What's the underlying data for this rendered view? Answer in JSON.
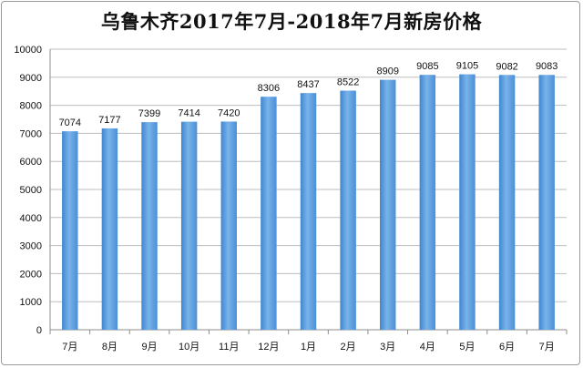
{
  "chart_data": {
    "type": "bar",
    "title": "乌鲁木齐2017年7月-2018年7月新房价格",
    "xlabel": "",
    "ylabel": "",
    "categories": [
      "7月",
      "8月",
      "9月",
      "10月",
      "11月",
      "12月",
      "1月",
      "2月",
      "3月",
      "4月",
      "5月",
      "6月",
      "7月"
    ],
    "values": [
      7074,
      7177,
      7399,
      7414,
      7420,
      8306,
      8437,
      8522,
      8909,
      9085,
      9105,
      9082,
      9083
    ],
    "ylim": [
      0,
      10000
    ],
    "yticks": [
      0,
      1000,
      2000,
      3000,
      4000,
      5000,
      6000,
      7000,
      8000,
      9000,
      10000
    ],
    "grid": true,
    "legend": "none",
    "data_labels": true,
    "bar_color": "#5b9bd5"
  }
}
